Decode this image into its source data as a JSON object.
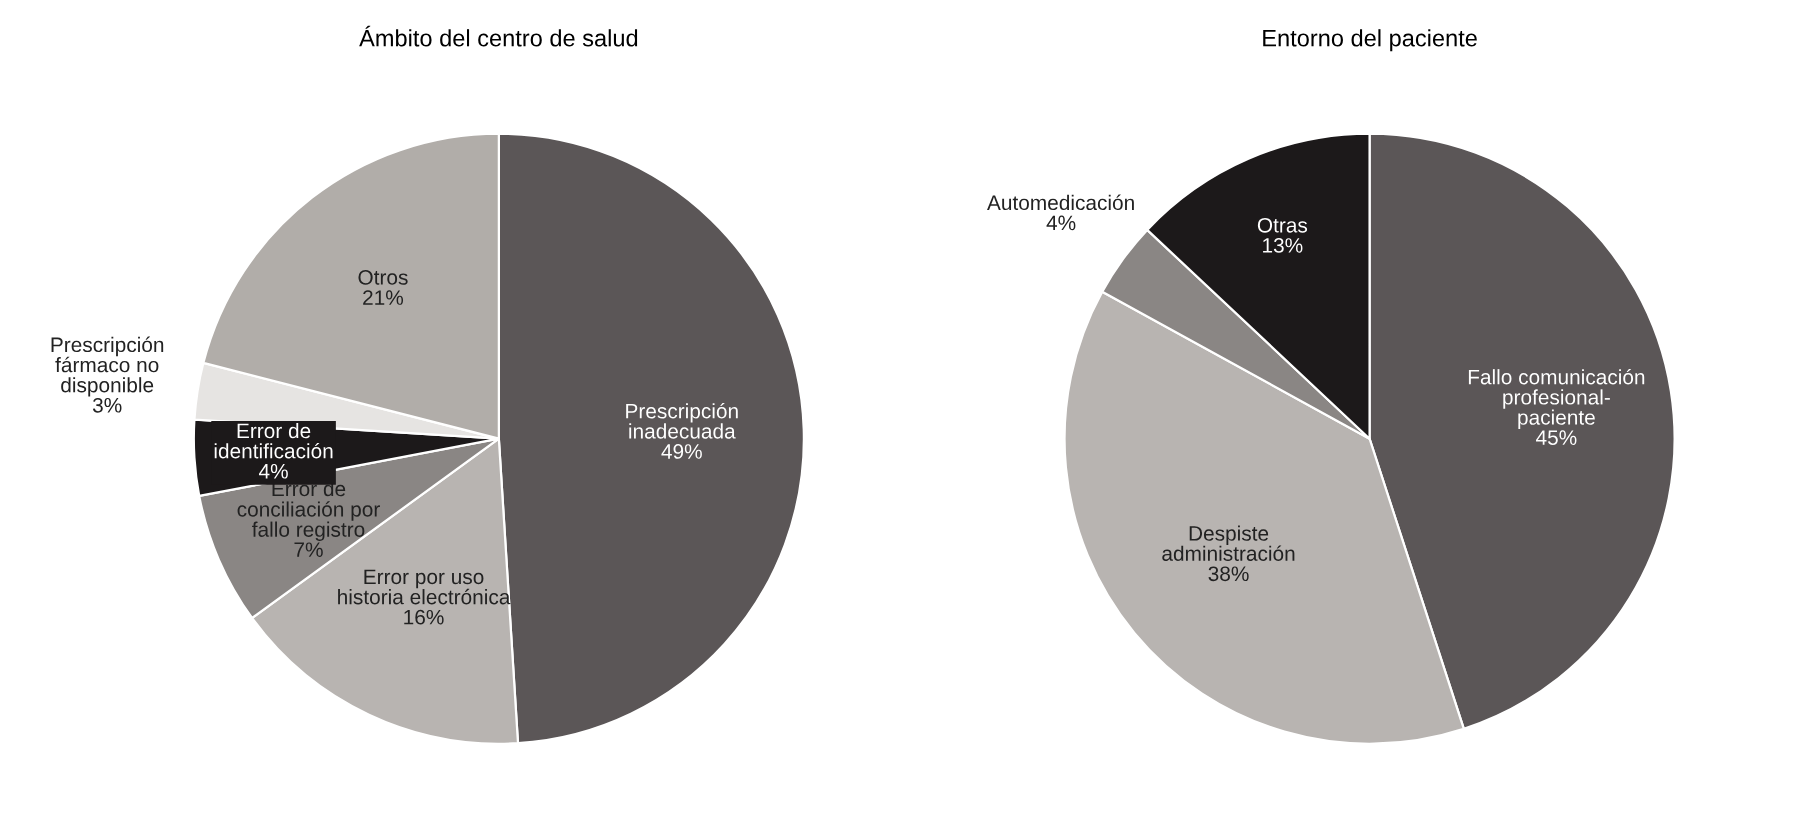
{
  "chart_data": [
    {
      "type": "pie",
      "title": "Ámbito del centro de salud",
      "categories": [
        "Prescripción\ninadecuada",
        "Error por uso\nhistoria electrónica",
        "Error de\nconciliación por\nfallo registro",
        "Error de\nidentificación",
        "Prescripción\nfármaco no\ndisponible",
        "Otros"
      ],
      "values": [
        49,
        16,
        7,
        4,
        3,
        21
      ],
      "colors": [
        "#5b5657",
        "#b8b4b1",
        "#8a8684",
        "#1c191a",
        "#e6e4e2",
        "#b1ada9"
      ],
      "value_labels": [
        "49%",
        "16%",
        "7%",
        "4%",
        "3%",
        "21%"
      ]
    },
    {
      "type": "pie",
      "title": "Entorno del paciente",
      "categories": [
        "Fallo comunicación\nprofesional-\npaciente",
        "Despiste\nadministración",
        "Automedicación",
        "Otras"
      ],
      "values": [
        45,
        38,
        4,
        13
      ],
      "colors": [
        "#5b5657",
        "#b8b4b1",
        "#8a8684",
        "#1c191a"
      ],
      "value_labels": [
        "45%",
        "38%",
        "4%",
        "13%"
      ]
    }
  ]
}
